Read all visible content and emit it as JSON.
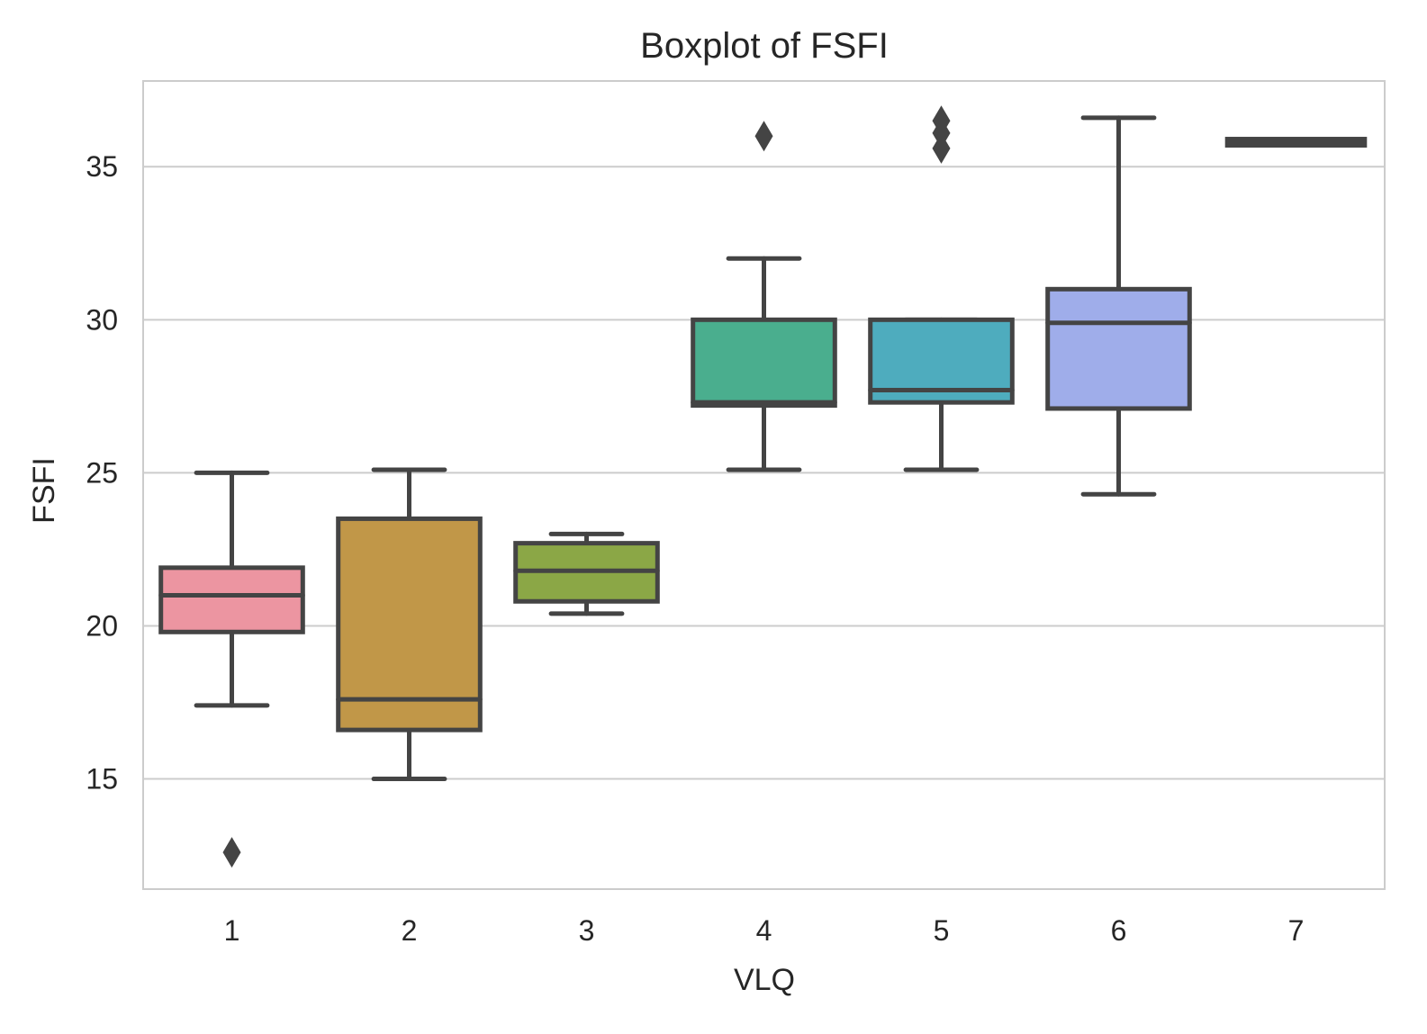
{
  "chart_data": {
    "type": "box",
    "title": "Boxplot of FSFI",
    "xlabel": "VLQ",
    "ylabel": "FSFI",
    "categories": [
      "1",
      "2",
      "3",
      "4",
      "5",
      "6",
      "7"
    ],
    "ylim": [
      11.4,
      37.8
    ],
    "yticks": [
      15,
      20,
      25,
      30,
      35
    ],
    "grid": true,
    "colors": [
      "#ec95a1",
      "#c19748",
      "#8ba746",
      "#4aae8e",
      "#4eacbe",
      "#9fadea",
      "#e59ef0"
    ],
    "boxes": [
      {
        "category": "1",
        "whisker_low": 17.4,
        "q1": 19.8,
        "median": 21.0,
        "q3": 21.9,
        "whisker_high": 25.0,
        "outliers": [
          12.6
        ]
      },
      {
        "category": "2",
        "whisker_low": 15.0,
        "q1": 16.6,
        "median": 17.6,
        "q3": 23.5,
        "whisker_high": 25.1,
        "outliers": []
      },
      {
        "category": "3",
        "whisker_low": 20.4,
        "q1": 20.8,
        "median": 21.8,
        "q3": 22.7,
        "whisker_high": 23.0,
        "outliers": []
      },
      {
        "category": "4",
        "whisker_low": 25.1,
        "q1": 27.2,
        "median": 27.3,
        "q3": 30.0,
        "whisker_high": 32.0,
        "outliers": [
          36.0
        ]
      },
      {
        "category": "5",
        "whisker_low": 25.1,
        "q1": 27.3,
        "median": 27.7,
        "q3": 30.0,
        "whisker_high": 30.0,
        "outliers": [
          35.6,
          36.1,
          36.5
        ]
      },
      {
        "category": "6",
        "whisker_low": 24.3,
        "q1": 27.1,
        "median": 29.9,
        "q3": 31.0,
        "whisker_high": 36.6,
        "outliers": []
      },
      {
        "category": "7",
        "whisker_low": 35.8,
        "q1": 35.8,
        "median": 35.8,
        "q3": 35.8,
        "whisker_high": 35.8,
        "outliers": []
      }
    ]
  }
}
